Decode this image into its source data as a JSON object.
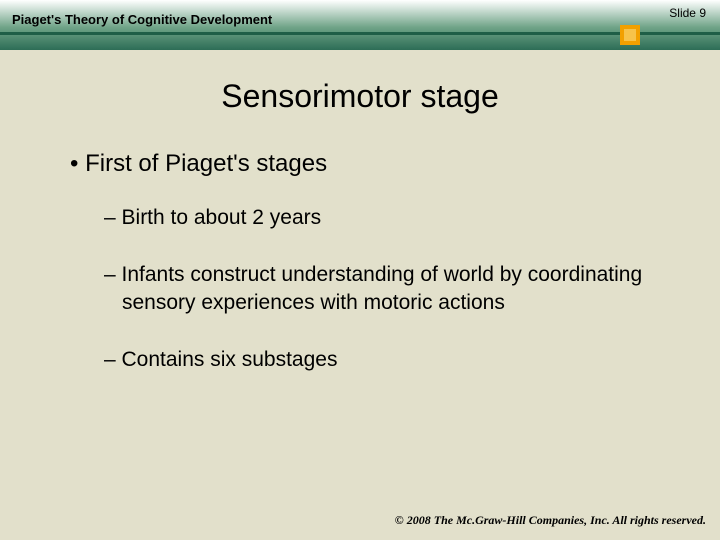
{
  "colors": {
    "background": "#e2e0cb",
    "header_gradient_top": "#ffffff",
    "header_gradient_mid": "#6fa387",
    "header_gradient_bottom": "#2d6d56",
    "accent_line": "#1f5e47",
    "accent_square_outer": "#f2a000",
    "accent_square_inner": "#f7c34a",
    "text": "#000000"
  },
  "header": {
    "chapter_title": "Piaget's Theory of Cognitive Development",
    "slide_number": "Slide 9"
  },
  "slide": {
    "title": "Sensorimotor stage",
    "bullet_main": "First of Piaget's stages",
    "sub_1": "Birth to about 2 years",
    "sub_2": "Infants construct understanding of world by coordinating sensory experiences with motoric actions",
    "sub_3": "Contains six substages"
  },
  "footer": {
    "copyright": "© 2008 The Mc.Graw-Hill Companies, Inc. All rights reserved."
  },
  "typography": {
    "title_fontsize": 32,
    "bullet_l1_fontsize": 24,
    "bullet_l2_fontsize": 21,
    "header_fontsize": 13,
    "slidenum_fontsize": 12,
    "footer_fontsize": 12
  }
}
